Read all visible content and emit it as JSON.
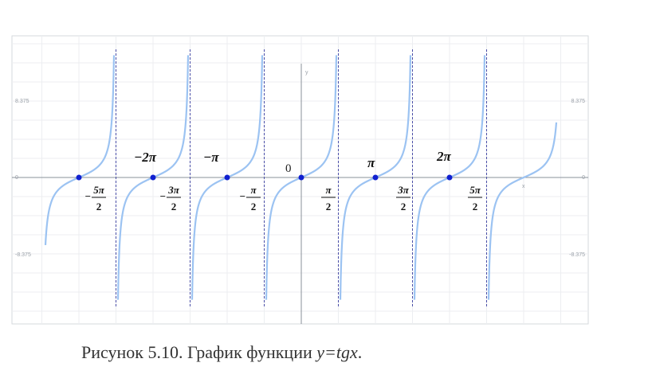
{
  "figure": {
    "point_labels": [
      "−2π",
      "−π",
      "0",
      "π",
      "2π"
    ],
    "fractions": [
      {
        "sign": "−",
        "numerator": "5π",
        "denominator": "2"
      },
      {
        "sign": "−",
        "numerator": "3π",
        "denominator": "2"
      },
      {
        "sign": "−",
        "numerator": "π",
        "denominator": "2"
      },
      {
        "numerator": "π",
        "denominator": "2"
      },
      {
        "numerator": "3π",
        "denominator": "2"
      },
      {
        "numerator": "5π",
        "denominator": "2"
      }
    ],
    "axis_labels": {
      "x": "x",
      "y": "y"
    },
    "tick_labels": [
      "8.375",
      "0",
      "-8.375"
    ],
    "caption": {
      "text": "Рисунок 5.10. График функции ",
      "formula": "y=tgx",
      "end": "."
    }
  }
}
